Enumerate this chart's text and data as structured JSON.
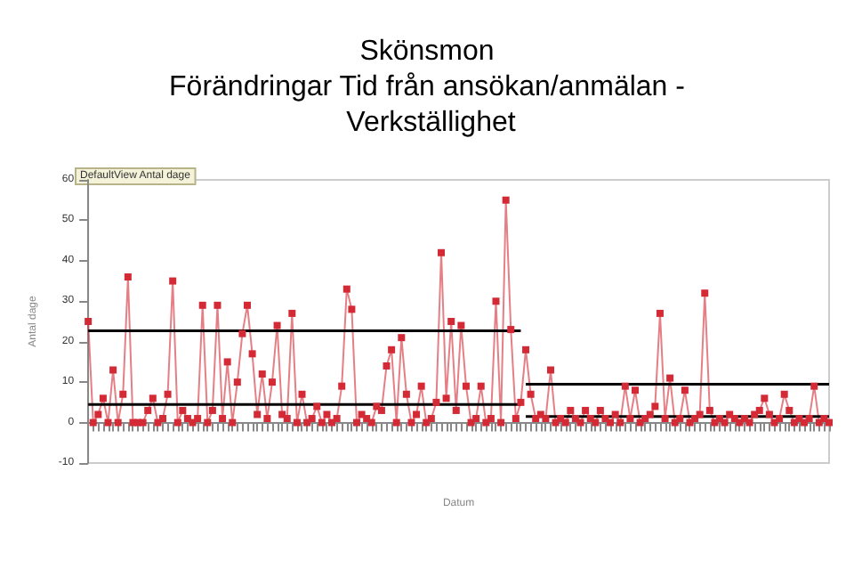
{
  "chart_data": {
    "type": "line",
    "title": "Skönsmon\nFörändringar Tid från ansökan/anmälan - Verkställighet",
    "xlabel": "Datum",
    "ylabel": "Antal dage",
    "annotations": [
      "DefaultView Antal dage"
    ],
    "categories": [
      null,
      null,
      null,
      null,
      null,
      null,
      null,
      null,
      null,
      null,
      null,
      null,
      null,
      null,
      null,
      null,
      null,
      null,
      null,
      null,
      null,
      null,
      null,
      null,
      null,
      null,
      null,
      null,
      null,
      null,
      null,
      null,
      null,
      null,
      null,
      null,
      null,
      null,
      null,
      null,
      null,
      null,
      null,
      null,
      null,
      null,
      null,
      null,
      null,
      null,
      null,
      null,
      null,
      null,
      null,
      null,
      null,
      null,
      null,
      null,
      null,
      null,
      null,
      null,
      null,
      null,
      null,
      null,
      null,
      null,
      null,
      null,
      null,
      null,
      null,
      null,
      null,
      null,
      null,
      null,
      null,
      null,
      null,
      null,
      null,
      null,
      null,
      null,
      null,
      null,
      null,
      null,
      null,
      null,
      null,
      null,
      null,
      null,
      null,
      null,
      null,
      null,
      null,
      null,
      null,
      null,
      null,
      null,
      null,
      null,
      null,
      null,
      null,
      null,
      null,
      null,
      null,
      null,
      null,
      null,
      null,
      null,
      null,
      null,
      null,
      null,
      null,
      null,
      null,
      null,
      null,
      null,
      null,
      null,
      null,
      null,
      null,
      null,
      null,
      null,
      null,
      null,
      null,
      null,
      null,
      null,
      null,
      null,
      null,
      null
    ],
    "ylim": [
      -10,
      60
    ],
    "yticks": [
      -10,
      0,
      10,
      20,
      30,
      40,
      50,
      60
    ],
    "line_style": "solid",
    "series": [
      {
        "marker": "square",
        "color": "#d42a35",
        "values": [
          25,
          0,
          2,
          6,
          0,
          13,
          0,
          7,
          36,
          0,
          0,
          0,
          3,
          6,
          0,
          1,
          7,
          35,
          0,
          3,
          1,
          0,
          1,
          29,
          0,
          3,
          29,
          1,
          15,
          0,
          10,
          22,
          29,
          17,
          2,
          12,
          1,
          10,
          24,
          2,
          1,
          27,
          0,
          7,
          0,
          1,
          4,
          0,
          2,
          0,
          1,
          9,
          33,
          28,
          0,
          2,
          1,
          0,
          4,
          3,
          14,
          18,
          0,
          21,
          7,
          0,
          2,
          9,
          0,
          1,
          5,
          42,
          6,
          25,
          3,
          24,
          9,
          0,
          1,
          9,
          0,
          1,
          30,
          0,
          55,
          23,
          1,
          5,
          18,
          7,
          1,
          2,
          1,
          13,
          0,
          1,
          0,
          3,
          1,
          0,
          3,
          1,
          0,
          3,
          1,
          0,
          2,
          0,
          9,
          1,
          8,
          0,
          1,
          2,
          4,
          27,
          1,
          11,
          0,
          1,
          8,
          0,
          1,
          2,
          32,
          3,
          0,
          1,
          0,
          2,
          1,
          0,
          1,
          0,
          2,
          3,
          6,
          2,
          0,
          1,
          7,
          3,
          0,
          1,
          0,
          1,
          9,
          0,
          1,
          0
        ]
      },
      {
        "marker": "none",
        "color": "#000000",
        "values": [
          22.7,
          22.7,
          22.7,
          22.7,
          22.7,
          22.7,
          22.7,
          22.7,
          22.7,
          22.7,
          22.7,
          22.7,
          22.7,
          22.7,
          22.7,
          22.7,
          22.7,
          22.7,
          22.7,
          22.7,
          22.7,
          22.7,
          22.7,
          22.7,
          22.7,
          22.7,
          22.7,
          22.7,
          22.7,
          22.7,
          22.7,
          22.7,
          22.7,
          22.7,
          22.7,
          22.7,
          22.7,
          22.7,
          22.7,
          22.7,
          22.7,
          22.7,
          22.7,
          22.7,
          22.7,
          22.7,
          22.7,
          22.7,
          22.7,
          22.7,
          22.7,
          22.7,
          22.7,
          22.7,
          22.7,
          22.7,
          22.7,
          22.7,
          22.7,
          22.7,
          22.7,
          22.7,
          22.7,
          22.7,
          22.7,
          22.7,
          22.7,
          22.7,
          22.7,
          22.7,
          22.7,
          22.7,
          22.7,
          22.7,
          22.7,
          22.7,
          22.7,
          22.7,
          22.7,
          22.7,
          22.7,
          22.7,
          22.7,
          22.7,
          22.7,
          22.7,
          22.7,
          22.7,
          null,
          null,
          null,
          null,
          null,
          null,
          null,
          null,
          null,
          null,
          null,
          null,
          null,
          null,
          null,
          null,
          null,
          null,
          null,
          null,
          null,
          null,
          null,
          null,
          null,
          null,
          null,
          null,
          null,
          null,
          null,
          null,
          null,
          null,
          null,
          null,
          null,
          null,
          null,
          null,
          null,
          null,
          null,
          null,
          null,
          null,
          null,
          null,
          null,
          null,
          null,
          null,
          null,
          null,
          null,
          null,
          null,
          null,
          null,
          null,
          null,
          null
        ]
      },
      {
        "marker": "none",
        "color": "#000000",
        "values": [
          4.5,
          4.5,
          4.5,
          4.5,
          4.5,
          4.5,
          4.5,
          4.5,
          4.5,
          4.5,
          4.5,
          4.5,
          4.5,
          4.5,
          4.5,
          4.5,
          4.5,
          4.5,
          4.5,
          4.5,
          4.5,
          4.5,
          4.5,
          4.5,
          4.5,
          4.5,
          4.5,
          4.5,
          4.5,
          4.5,
          4.5,
          4.5,
          4.5,
          4.5,
          4.5,
          4.5,
          4.5,
          4.5,
          4.5,
          4.5,
          4.5,
          4.5,
          4.5,
          4.5,
          4.5,
          4.5,
          4.5,
          4.5,
          4.5,
          4.5,
          4.5,
          4.5,
          4.5,
          4.5,
          4.5,
          4.5,
          4.5,
          4.5,
          4.5,
          4.5,
          4.5,
          4.5,
          4.5,
          4.5,
          4.5,
          4.5,
          4.5,
          4.5,
          4.5,
          4.5,
          4.5,
          4.5,
          4.5,
          4.5,
          4.5,
          4.5,
          4.5,
          4.5,
          4.5,
          4.5,
          4.5,
          4.5,
          4.5,
          4.5,
          4.5,
          4.5,
          4.5,
          4.5,
          null,
          null,
          null,
          null,
          null,
          null,
          null,
          null,
          null,
          null,
          null,
          null,
          null,
          null,
          null,
          null,
          null,
          null,
          null,
          null,
          null,
          null,
          null,
          null,
          null,
          null,
          null,
          null,
          null,
          null,
          null,
          null,
          null,
          null,
          null,
          null,
          null,
          null,
          null,
          null,
          null,
          null,
          null,
          null,
          null,
          null,
          null,
          null,
          null,
          null,
          null,
          null,
          null,
          null,
          null,
          null,
          null,
          null,
          null,
          null,
          null,
          null
        ]
      },
      {
        "marker": "none",
        "color": "#000000",
        "values": [
          null,
          null,
          null,
          null,
          null,
          null,
          null,
          null,
          null,
          null,
          null,
          null,
          null,
          null,
          null,
          null,
          null,
          null,
          null,
          null,
          null,
          null,
          null,
          null,
          null,
          null,
          null,
          null,
          null,
          null,
          null,
          null,
          null,
          null,
          null,
          null,
          null,
          null,
          null,
          null,
          null,
          null,
          null,
          null,
          null,
          null,
          null,
          null,
          null,
          null,
          null,
          null,
          null,
          null,
          null,
          null,
          null,
          null,
          null,
          null,
          null,
          null,
          null,
          null,
          null,
          null,
          null,
          null,
          null,
          null,
          null,
          null,
          null,
          null,
          null,
          null,
          null,
          null,
          null,
          null,
          null,
          null,
          null,
          null,
          null,
          null,
          null,
          null,
          9.5,
          9.5,
          9.5,
          9.5,
          9.5,
          9.5,
          9.5,
          9.5,
          9.5,
          9.5,
          9.5,
          9.5,
          9.5,
          9.5,
          9.5,
          9.5,
          9.5,
          9.5,
          9.5,
          9.5,
          9.5,
          9.5,
          9.5,
          9.5,
          9.5,
          9.5,
          9.5,
          9.5,
          9.5,
          9.5,
          9.5,
          9.5,
          9.5,
          9.5,
          9.5,
          9.5,
          9.5,
          9.5,
          9.5,
          9.5,
          9.5,
          9.5,
          9.5,
          9.5,
          9.5,
          9.5,
          9.5,
          9.5,
          9.5,
          9.5,
          9.5,
          9.5,
          9.5,
          9.5,
          9.5,
          9.5,
          9.5,
          9.5,
          9.5,
          9.5,
          9.5,
          9.5
        ]
      },
      {
        "marker": "none",
        "color": "#000000",
        "values": [
          null,
          null,
          null,
          null,
          null,
          null,
          null,
          null,
          null,
          null,
          null,
          null,
          null,
          null,
          null,
          null,
          null,
          null,
          null,
          null,
          null,
          null,
          null,
          null,
          null,
          null,
          null,
          null,
          null,
          null,
          null,
          null,
          null,
          null,
          null,
          null,
          null,
          null,
          null,
          null,
          null,
          null,
          null,
          null,
          null,
          null,
          null,
          null,
          null,
          null,
          null,
          null,
          null,
          null,
          null,
          null,
          null,
          null,
          null,
          null,
          null,
          null,
          null,
          null,
          null,
          null,
          null,
          null,
          null,
          null,
          null,
          null,
          null,
          null,
          null,
          null,
          null,
          null,
          null,
          null,
          null,
          null,
          null,
          null,
          null,
          null,
          null,
          null,
          1.5,
          1.5,
          1.5,
          1.5,
          1.5,
          1.5,
          1.5,
          1.5,
          1.5,
          1.5,
          1.5,
          1.5,
          1.5,
          1.5,
          1.5,
          1.5,
          1.5,
          1.5,
          1.5,
          1.5,
          1.5,
          1.5,
          1.5,
          1.5,
          1.5,
          1.5,
          1.5,
          1.5,
          1.5,
          1.5,
          1.5,
          1.5,
          1.5,
          1.5,
          1.5,
          1.5,
          1.5,
          1.5,
          1.5,
          1.5,
          1.5,
          1.5,
          1.5,
          1.5,
          1.5,
          1.5,
          1.5,
          1.5,
          1.5,
          1.5,
          1.5,
          1.5,
          1.5,
          1.5,
          1.5,
          1.5,
          1.5,
          1.5,
          1.5,
          1.5,
          1.5,
          1.5
        ]
      }
    ]
  }
}
